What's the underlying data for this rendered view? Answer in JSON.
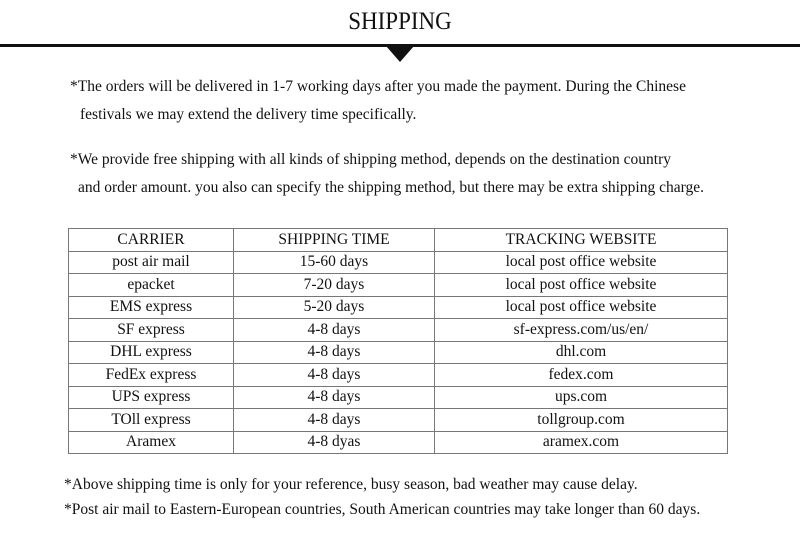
{
  "title": "SHIPPING",
  "paragraphs": [
    {
      "line1": "*The orders will be delivered in 1-7 working days after you made the payment. During the Chinese",
      "line2": "festivals we may extend the delivery time specifically."
    },
    {
      "line1": "*We provide free shipping with all kinds of shipping method, depends on the destination country",
      "line2": "and order amount. you also can specify the shipping method, but there may be extra shipping charge."
    }
  ],
  "table": {
    "headers": [
      "CARRIER",
      "SHIPPING TIME",
      "TRACKING WEBSITE"
    ],
    "rows": [
      [
        "post air mail",
        "15-60 days",
        "local post office website"
      ],
      [
        "epacket",
        "7-20 days",
        "local post office website"
      ],
      [
        "EMS express",
        "5-20 days",
        "local post office website"
      ],
      [
        "SF express",
        "4-8 days",
        "sf-express.com/us/en/"
      ],
      [
        "DHL express",
        "4-8 days",
        "dhl.com"
      ],
      [
        "FedEx express",
        "4-8 days",
        "fedex.com"
      ],
      [
        "UPS express",
        "4-8 days",
        "ups.com"
      ],
      [
        "TOll express",
        "4-8 days",
        "tollgroup.com"
      ],
      [
        "Aramex",
        "4-8 dyas",
        "aramex.com"
      ]
    ]
  },
  "notes": [
    "*Above shipping time is only for your reference, busy season, bad weather may cause delay.",
    "*Post air mail to Eastern-European countries, South American countries may take longer than 60 days."
  ]
}
